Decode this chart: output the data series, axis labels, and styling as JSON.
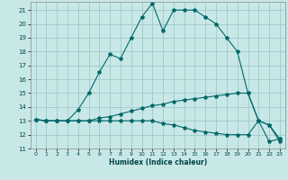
{
  "xlabel": "Humidex (Indice chaleur)",
  "bg_color": "#c8e8e8",
  "grid_color": "#a0c8c8",
  "line_color": "#006868",
  "xlim": [
    -0.5,
    23.5
  ],
  "ylim": [
    11,
    21.6
  ],
  "yticks": [
    11,
    12,
    13,
    14,
    15,
    16,
    17,
    18,
    19,
    20,
    21
  ],
  "xticks": [
    0,
    1,
    2,
    3,
    4,
    5,
    6,
    7,
    8,
    9,
    10,
    11,
    12,
    13,
    14,
    15,
    16,
    17,
    18,
    19,
    20,
    21,
    22,
    23
  ],
  "series": [
    {
      "x": [
        0,
        1,
        2,
        3,
        4,
        5,
        6,
        7,
        8,
        9,
        10,
        11,
        12,
        13,
        14,
        15,
        16,
        17,
        18,
        19,
        20,
        21,
        22,
        23
      ],
      "y": [
        13.1,
        13.0,
        13.0,
        13.0,
        13.8,
        15.0,
        16.5,
        17.8,
        17.5,
        19.0,
        20.5,
        21.5,
        19.5,
        21.0,
        21.0,
        21.0,
        20.5,
        20.0,
        19.0,
        18.0,
        15.0,
        13.0,
        12.7,
        11.5
      ]
    },
    {
      "x": [
        0,
        1,
        2,
        3,
        4,
        5,
        6,
        7,
        8,
        9,
        10,
        11,
        12,
        13,
        14,
        15,
        16,
        17,
        18,
        19,
        20,
        21,
        22,
        23
      ],
      "y": [
        13.1,
        13.0,
        13.0,
        13.0,
        13.0,
        13.0,
        13.2,
        13.3,
        13.5,
        13.7,
        13.9,
        14.1,
        14.2,
        14.4,
        14.5,
        14.6,
        14.7,
        14.8,
        14.9,
        15.0,
        15.0,
        13.0,
        12.7,
        11.7
      ]
    },
    {
      "x": [
        0,
        1,
        2,
        3,
        4,
        5,
        6,
        7,
        8,
        9,
        10,
        11,
        12,
        13,
        14,
        15,
        16,
        17,
        18,
        19,
        20,
        21,
        22,
        23
      ],
      "y": [
        13.1,
        13.0,
        13.0,
        13.0,
        13.0,
        13.0,
        13.0,
        13.0,
        13.0,
        13.0,
        13.0,
        13.0,
        12.8,
        12.7,
        12.5,
        12.3,
        12.2,
        12.1,
        12.0,
        12.0,
        12.0,
        13.0,
        11.5,
        11.7
      ]
    }
  ]
}
